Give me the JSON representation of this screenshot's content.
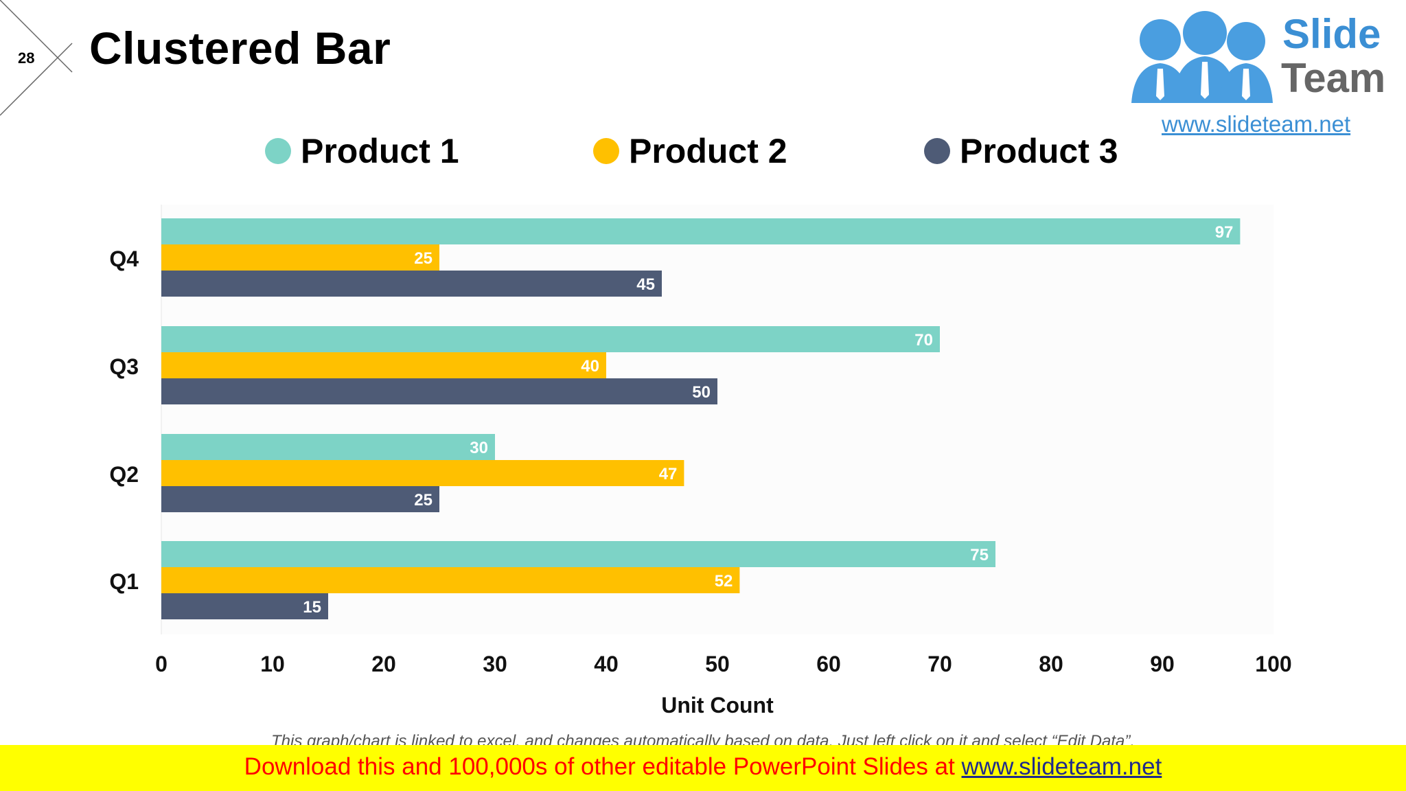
{
  "slide": {
    "number": "28",
    "title": "Clustered Bar"
  },
  "logo": {
    "word1": "Slide",
    "word2": "Team",
    "url": "www.slideteam.net"
  },
  "footnote": "This graph/chart is linked to excel, and changes automatically based on data. Just left click on it and select “Edit Data”.",
  "banner": {
    "text": "Download this and 100,000s of other editable PowerPoint Slides at ",
    "link": "www.slideteam.net"
  },
  "colors": {
    "product1": "#7dd3c6",
    "product2": "#ffc000",
    "product3": "#4e5b76",
    "logo_blue": "#4a9ee0"
  },
  "chart_data": {
    "type": "bar",
    "orientation": "horizontal",
    "categories": [
      "Q1",
      "Q2",
      "Q3",
      "Q4"
    ],
    "series": [
      {
        "name": "Product 1",
        "color": "#7dd3c6",
        "values": [
          75,
          30,
          70,
          97
        ]
      },
      {
        "name": "Product 2",
        "color": "#ffc000",
        "values": [
          52,
          47,
          40,
          25
        ]
      },
      {
        "name": "Product 3",
        "color": "#4e5b76",
        "values": [
          15,
          25,
          50,
          45
        ]
      }
    ],
    "xlabel": "Unit Count",
    "xlim": [
      0,
      100
    ],
    "xticks": [
      0,
      10,
      20,
      30,
      40,
      50,
      60,
      70,
      80,
      90,
      100
    ],
    "data_labels": true,
    "legend_position": "top",
    "grid": false
  }
}
